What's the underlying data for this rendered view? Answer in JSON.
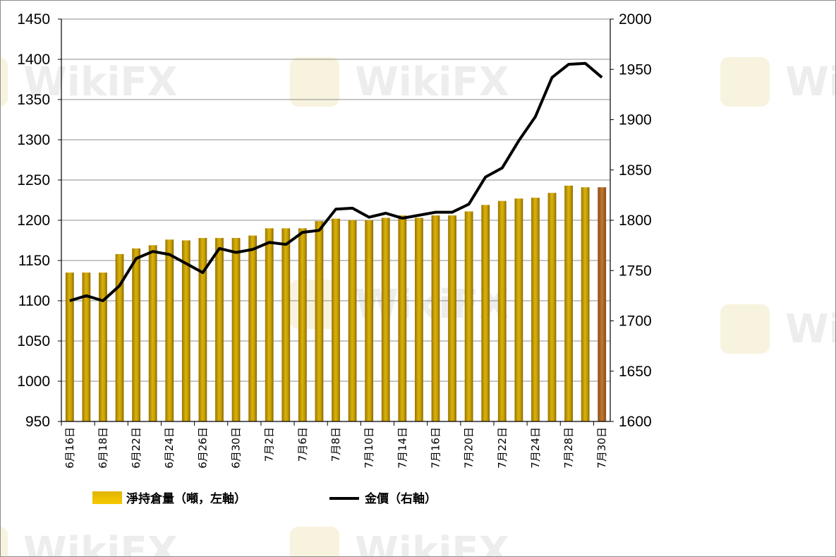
{
  "chart_data": {
    "type": "bar",
    "title": "",
    "xlabel": "",
    "ylabel": "",
    "categories": [
      "6月16日",
      "6月17日",
      "6月18日",
      "6月19日",
      "6月22日",
      "6月23日",
      "6月24日",
      "6月25日",
      "6月26日",
      "6月29日",
      "6月30日",
      "7月1日",
      "7月2日",
      "7月3日",
      "7月6日",
      "7月7日",
      "7月8日",
      "7月9日",
      "7月10日",
      "7月13日",
      "7月14日",
      "7月15日",
      "7月16日",
      "7月17日",
      "7月20日",
      "7月21日",
      "7月22日",
      "7月23日",
      "7月24日",
      "7月27日",
      "7月28日",
      "7月29日",
      "7月30日"
    ],
    "category_label_indices": [
      0,
      2,
      4,
      6,
      8,
      10,
      12,
      14,
      16,
      18,
      20,
      22,
      24,
      26,
      28,
      30,
      32
    ],
    "series": [
      {
        "name": "淨持倉量（噸，左軸）",
        "type": "bar",
        "axis": "left",
        "color": "#c8a200",
        "highlight_last_color": "#b5651d",
        "values": [
          1135,
          1135,
          1135,
          1158,
          1165,
          1169,
          1176,
          1175,
          1178,
          1178,
          1178,
          1181,
          1190,
          1190,
          1190,
          1199,
          1202,
          1200,
          1200,
          1203,
          1206,
          1203,
          1206,
          1206,
          1211,
          1219,
          1224,
          1227,
          1228,
          1234,
          1243,
          1241,
          1241
        ]
      },
      {
        "name": "金價（右軸）",
        "type": "line",
        "axis": "right",
        "color": "#000000",
        "values": [
          1720,
          1725,
          1720,
          1735,
          1762,
          1769,
          1766,
          1757,
          1748,
          1772,
          1768,
          1771,
          1778,
          1776,
          1788,
          1790,
          1811,
          1812,
          1803,
          1807,
          1802,
          1805,
          1808,
          1808,
          1816,
          1843,
          1852,
          1879,
          1903,
          1942,
          1955,
          1956,
          1942
        ]
      }
    ],
    "y_left": {
      "min": 950,
      "max": 1450,
      "ticks": [
        950,
        1000,
        1050,
        1100,
        1150,
        1200,
        1250,
        1300,
        1350,
        1400,
        1450
      ]
    },
    "y_right": {
      "min": 1600,
      "max": 2000,
      "ticks": [
        1600,
        1650,
        1700,
        1750,
        1800,
        1850,
        1900,
        1950,
        2000
      ]
    },
    "grid": "horizontal",
    "legend_position": "bottom",
    "watermark": "WikiFX"
  }
}
